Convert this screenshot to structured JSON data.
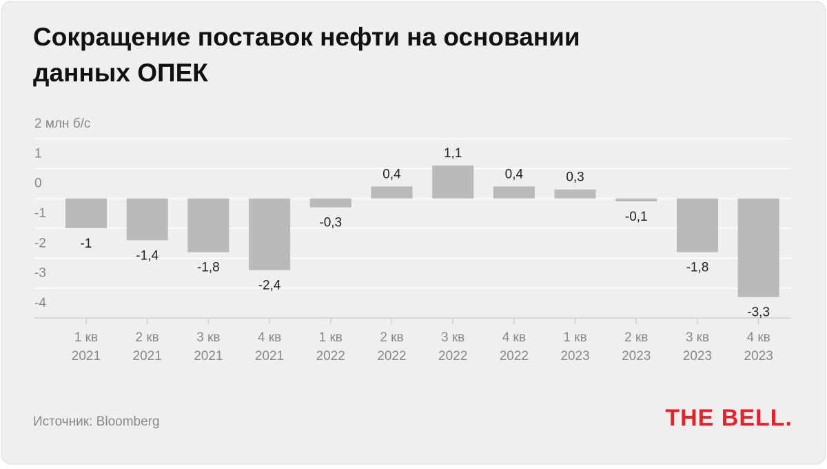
{
  "chart_data": {
    "type": "bar",
    "title": "Сокращение поставок нефти на основании данных ОПЕК",
    "categories": [
      "1 кв 2021",
      "2 кв 2021",
      "3 кв 2021",
      "4 кв 2021",
      "1 кв 2022",
      "2 кв 2022",
      "3 кв 2022",
      "4 кв 2022",
      "1 кв 2023",
      "2 кв 2023",
      "3 кв 2023",
      "4 кв 2023"
    ],
    "values": [
      -1,
      -1.4,
      -1.8,
      -2.4,
      -0.3,
      0.4,
      1.1,
      0.4,
      0.3,
      -0.1,
      -1.8,
      -3.3
    ],
    "value_labels": [
      "-1",
      "-1,4",
      "-1,8",
      "-2,4",
      "-0,3",
      "0,4",
      "1,1",
      "0,4",
      "0,3",
      "-0,1",
      "-1,8",
      "-3,3"
    ],
    "color": "#bababa",
    "ylim": [
      -4,
      2
    ],
    "yticks": [
      {
        "value": 2,
        "label": "2 млн б/с"
      },
      1,
      0,
      -1,
      -2,
      -3,
      -4
    ],
    "grid": true
  },
  "source": "Источник: Bloomberg",
  "logo": "THE BELL."
}
